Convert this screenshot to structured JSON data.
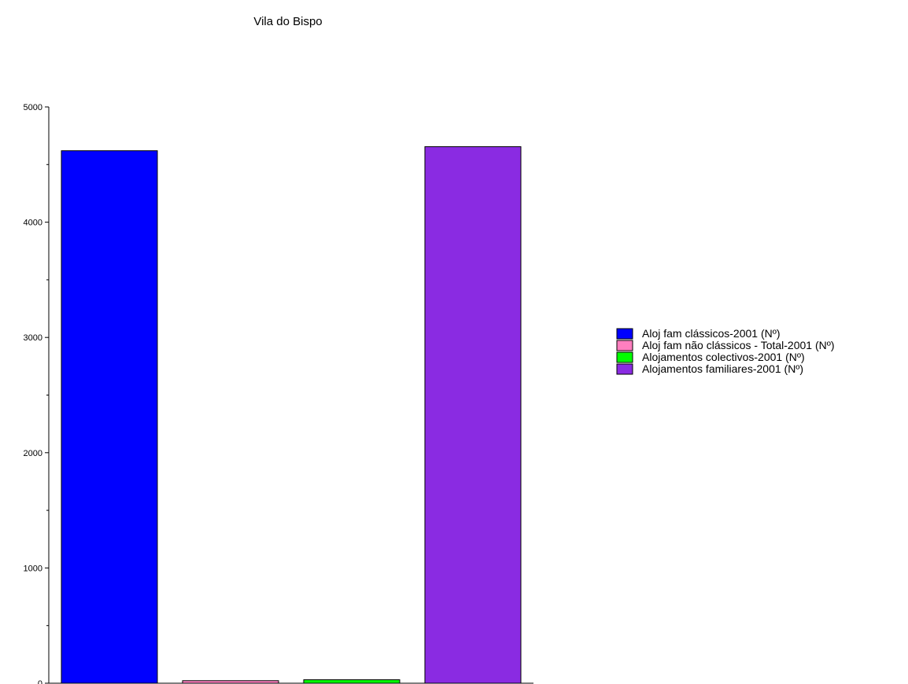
{
  "chart_data": {
    "type": "bar",
    "title": "Vila do Bispo",
    "xlabel": "",
    "ylabel": "",
    "ylim": [
      0,
      5000
    ],
    "yticks": [
      "0",
      "1000",
      "2000",
      "3000",
      "4000",
      "5000"
    ],
    "grid": false,
    "legend_position": "right",
    "series": [
      {
        "name": "Aloj fam clássicos-2001 (Nº)",
        "value": 4620,
        "color": "#0000ff"
      },
      {
        "name": "Aloj fam não clássicos - Total-2001 (Nº)",
        "value": 22,
        "color": "#ff7fbf"
      },
      {
        "name": "Alojamentos colectivos-2001 (Nº)",
        "value": 30,
        "color": "#00ff00"
      },
      {
        "name": "Alojamentos familiares-2001 (Nº)",
        "value": 4655,
        "color": "#8a2be2"
      }
    ]
  }
}
